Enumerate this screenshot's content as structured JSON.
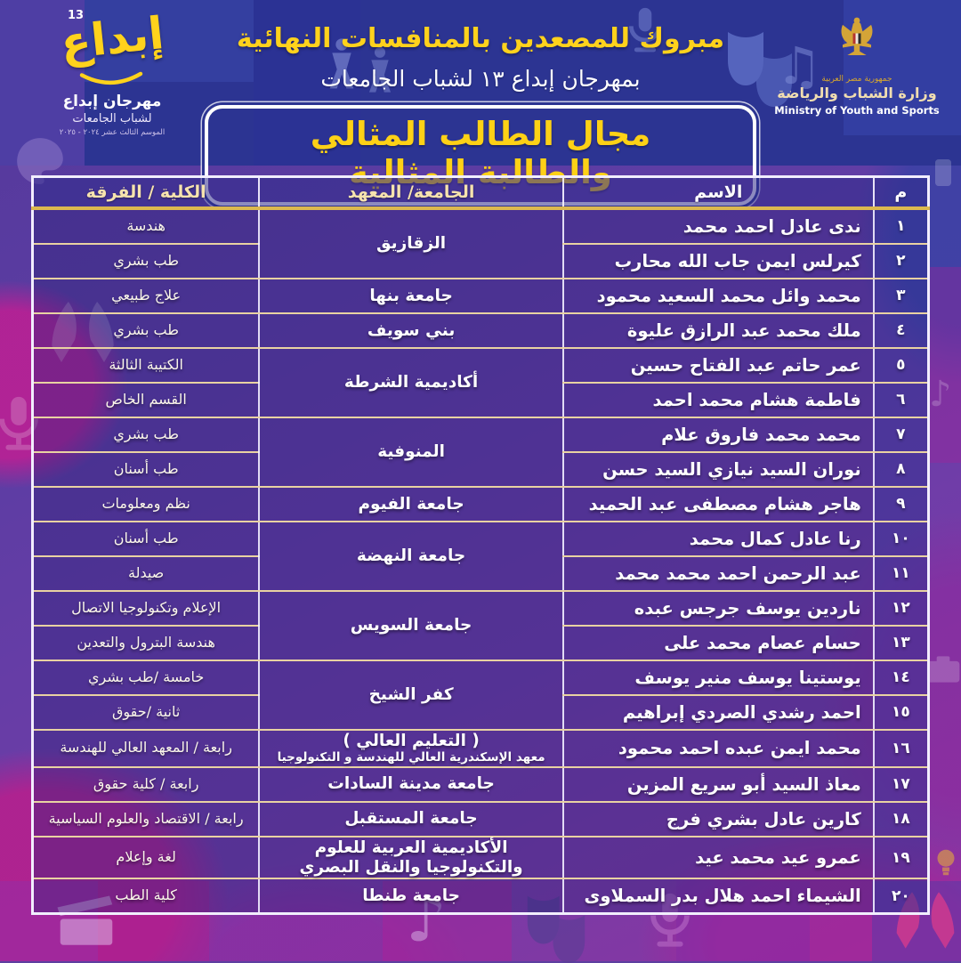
{
  "header": {
    "congrats_line": "مبروك للمصعدين بالمنافسات النهائية",
    "festival_line": "بمهرجان إبداع ١٣ لشباب الجامعات",
    "category_title": "مجال الطالب المثالي والطالبة المثالية"
  },
  "festival_logo": {
    "badge_number": "13",
    "wordmark": "إبداع",
    "line1": "مهرجان إبداع",
    "line2": "لشباب الجامعات",
    "line3": "الموسم الثالث عشر ٢٠٢٤ - ٢٠٢٥"
  },
  "ministry_logo": {
    "country_line": "جمهورية مصر العربية",
    "name_ar": "وزارة الشباب والرياضة",
    "name_en": "Ministry of Youth and Sports"
  },
  "colors": {
    "accent_yellow": "#ffd21c",
    "deep_blue": "#2c3492",
    "purple": "#5d3fa0",
    "magenta": "#a62790",
    "cream_line": "#e9d2a2",
    "gold_line": "#dcb94f"
  },
  "table": {
    "columns": [
      "م",
      "الاسم",
      "الجامعة/ المعهد",
      "الكلية / الفرقة"
    ],
    "rows": [
      {
        "no": "١",
        "name": "ندى عادل احمد محمد",
        "university": "الزقازيق",
        "rowspan": 2,
        "college": "هندسة"
      },
      {
        "no": "٢",
        "name": "كيرلس ايمن جاب الله محارب",
        "college": "طب بشري"
      },
      {
        "no": "٣",
        "name": "محمد وائل محمد السعيد محمود",
        "university": "جامعة بنها",
        "college": "علاج طبيعي"
      },
      {
        "no": "٤",
        "name": "ملك محمد عبد الرازق عليوة",
        "university": "بني سويف",
        "college": "طب بشري"
      },
      {
        "no": "٥",
        "name": "عمر حاتم عبد الفتاح حسين",
        "university": "أكاديمية الشرطة",
        "rowspan": 2,
        "college": "الكتيبة الثالثة"
      },
      {
        "no": "٦",
        "name": "فاطمة هشام محمد احمد",
        "college": "القسم الخاص"
      },
      {
        "no": "٧",
        "name": "محمد محمد فاروق علام",
        "university": "المنوفية",
        "rowspan": 2,
        "college": "طب بشري"
      },
      {
        "no": "٨",
        "name": "نوران السيد نيازي السيد حسن",
        "college": "طب أسنان"
      },
      {
        "no": "٩",
        "name": "هاجر هشام مصطفى عبد الحميد",
        "university": "جامعة الفيوم",
        "college": "نظم ومعلومات"
      },
      {
        "no": "١٠",
        "name": "رنا عادل كمال محمد",
        "university": "جامعة النهضة",
        "rowspan": 2,
        "college": "طب أسنان"
      },
      {
        "no": "١١",
        "name": "عبد الرحمن احمد محمد محمد",
        "college": "صيدلة"
      },
      {
        "no": "١٢",
        "name": "ناردين يوسف جرجس عبده",
        "university": "جامعة السويس",
        "rowspan": 2,
        "college": "الإعلام وتكنولوجيا الاتصال"
      },
      {
        "no": "١٣",
        "name": "حسام عصام محمد على",
        "college": "هندسة البترول والتعدين"
      },
      {
        "no": "١٤",
        "name": "يوستينا يوسف منير يوسف",
        "university": "كفر الشيخ",
        "rowspan": 2,
        "college": "خامسة /طب بشري"
      },
      {
        "no": "١٥",
        "name": "احمد رشدي الصردي إبراهيم",
        "college": "ثانية /حقوق"
      },
      {
        "no": "١٦",
        "name": "محمد ايمن عبده احمد محمود",
        "university": "( التعليم العالي )",
        "university_sub": "معهد الإسكندرية العالي للهندسة و التكنولوجيا",
        "college": "رابعة / المعهد العالي للهندسة"
      },
      {
        "no": "١٧",
        "name": "معاذ السيد أبو سريع المزين",
        "university": "جامعة مدينة السادات",
        "college": "رابعة / كلية حقوق"
      },
      {
        "no": "١٨",
        "name": "كارين عادل بشري فرج",
        "university": "جامعة المستقبل",
        "college": "رابعة / الاقتصاد والعلوم السياسية"
      },
      {
        "no": "١٩",
        "name": "عمرو عيد محمد عيد",
        "university": "الأكاديمية العربية للعلوم والتكنولوجيا والنقل البصري",
        "college": "لغة وإعلام"
      },
      {
        "no": "٢٠",
        "name": "الشيماء احمد هلال بدر السملاوى",
        "university": "جامعة طنطا",
        "college": "كلية الطب"
      }
    ]
  }
}
